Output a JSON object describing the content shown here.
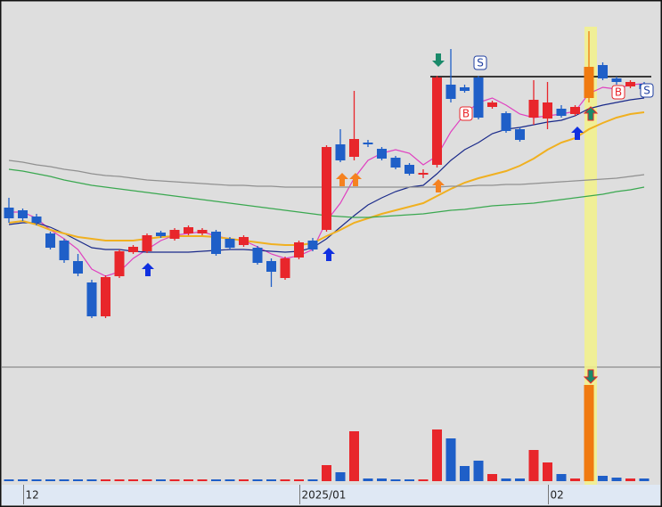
{
  "chart_data": {
    "type": "candlestick",
    "categories": [
      null,
      "12",
      null,
      null,
      null,
      null,
      null,
      null,
      null,
      null,
      null,
      null,
      null,
      null,
      null,
      null,
      null,
      null,
      null,
      null,
      null,
      "2025/01",
      null,
      null,
      null,
      null,
      null,
      null,
      null,
      null,
      null,
      null,
      null,
      null,
      null,
      null,
      null,
      null,
      null,
      "02",
      null,
      null,
      null,
      null,
      null,
      null,
      null
    ],
    "open": [
      177,
      174,
      167,
      148,
      140,
      117,
      93,
      55,
      100,
      127,
      128,
      149,
      142,
      148,
      148,
      150,
      142,
      135,
      132,
      117,
      98,
      121,
      140,
      152,
      248,
      234,
      250,
      243,
      233,
      225,
      214,
      225,
      315,
      312,
      323,
      290,
      283,
      265,
      278,
      277,
      288,
      282,
      300,
      337,
      322,
      313,
      316
    ],
    "high": [
      188,
      176,
      170,
      150,
      142,
      125,
      96,
      101,
      130,
      135,
      148,
      151,
      154,
      157,
      154,
      152,
      144,
      146,
      134,
      120,
      122,
      140,
      143,
      247,
      265,
      308,
      253,
      245,
      235,
      227,
      220,
      325,
      355,
      315,
      325,
      297,
      285,
      267,
      320,
      318,
      292,
      292,
      375,
      340,
      324,
      320,
      318
    ],
    "low": [
      160,
      162,
      157,
      130,
      115,
      100,
      53,
      53,
      98,
      125,
      126,
      143,
      140,
      146,
      146,
      123,
      130,
      133,
      113,
      88,
      96,
      119,
      128,
      150,
      228,
      230,
      245,
      230,
      220,
      213,
      210,
      222,
      295,
      306,
      276,
      288,
      261,
      251,
      270,
      265,
      278,
      280,
      295,
      320,
      315,
      311,
      308
    ],
    "close": [
      165,
      165,
      160,
      132,
      118,
      103,
      55,
      99,
      128,
      133,
      146,
      145,
      152,
      155,
      152,
      125,
      132,
      144,
      115,
      105,
      120,
      138,
      130,
      245,
      230,
      254,
      248,
      232,
      222,
      215,
      216,
      323,
      299,
      308,
      278,
      295,
      263,
      253,
      298,
      295,
      280,
      290,
      335,
      322,
      318,
      318,
      310
    ],
    "volume": [
      2,
      2,
      2,
      2,
      2,
      2,
      2,
      2,
      2,
      2,
      2,
      2,
      2,
      2,
      2,
      2,
      2,
      2,
      2,
      2,
      2,
      2,
      2,
      18,
      10,
      56,
      3,
      3,
      2,
      2,
      2,
      58,
      48,
      17,
      23,
      8,
      3,
      3,
      35,
      21,
      8,
      3,
      108,
      6,
      4,
      3,
      3
    ],
    "ylim": [
      0,
      410
    ],
    "volume_ylim": [
      0,
      125
    ],
    "up_color": "#e8262b",
    "down_color": "#1f5fc8",
    "highlight": 42,
    "highlight_color": "#f07a10",
    "resistance": 324,
    "series": [
      {
        "color": "#e040c0",
        "values": [
          172,
          172,
          165,
          152,
          142,
          130,
          108,
          100,
          105,
          120,
          130,
          140,
          146,
          148,
          150,
          145,
          142,
          140,
          133,
          125,
          120,
          123,
          130,
          162,
          182,
          210,
          230,
          238,
          242,
          238,
          225,
          235,
          262,
          282,
          295,
          300,
          292,
          282,
          278,
          280,
          282,
          285,
          305,
          312,
          310,
          315,
          316
        ]
      },
      {
        "color": "#1a2a8a",
        "values": [
          158,
          160,
          160,
          155,
          148,
          140,
          132,
          130,
          130,
          128,
          127,
          127,
          127,
          127,
          128,
          129,
          130,
          130,
          129,
          128,
          127,
          128,
          132,
          142,
          155,
          168,
          180,
          188,
          195,
          200,
          202,
          215,
          230,
          242,
          250,
          260,
          265,
          267,
          270,
          273,
          275,
          280,
          288,
          292,
          295,
          298,
          300
        ]
      },
      {
        "color": "#f0b020",
        "values": [
          160,
          162,
          158,
          152,
          148,
          144,
          142,
          140,
          140,
          140,
          142,
          144,
          145,
          145,
          145,
          144,
          142,
          140,
          138,
          136,
          135,
          135,
          137,
          145,
          152,
          160,
          165,
          170,
          174,
          178,
          182,
          190,
          198,
          205,
          210,
          214,
          218,
          224,
          232,
          242,
          250,
          255,
          265,
          272,
          278,
          282,
          284
        ]
      },
      {
        "color": "#3aa850",
        "values": [
          220,
          218,
          215,
          212,
          208,
          205,
          202,
          200,
          198,
          196,
          194,
          192,
          190,
          188,
          186,
          184,
          182,
          180,
          178,
          176,
          174,
          172,
          170,
          168,
          167,
          166,
          166,
          167,
          168,
          169,
          170,
          172,
          174,
          175,
          177,
          179,
          180,
          181,
          182,
          184,
          186,
          188,
          190,
          192,
          195,
          197,
          200
        ]
      },
      {
        "color": "#909090",
        "values": [
          230,
          228,
          225,
          223,
          220,
          218,
          215,
          213,
          212,
          210,
          208,
          207,
          206,
          205,
          204,
          203,
          202,
          202,
          201,
          201,
          200,
          200,
          200,
          200,
          200,
          200,
          200,
          200,
          200,
          200,
          200,
          200,
          201,
          201,
          202,
          202,
          203,
          203,
          204,
          205,
          206,
          207,
          208,
          209,
          210,
          212,
          214
        ]
      }
    ],
    "signals": [
      "B",
      "S",
      "B",
      "S"
    ]
  }
}
